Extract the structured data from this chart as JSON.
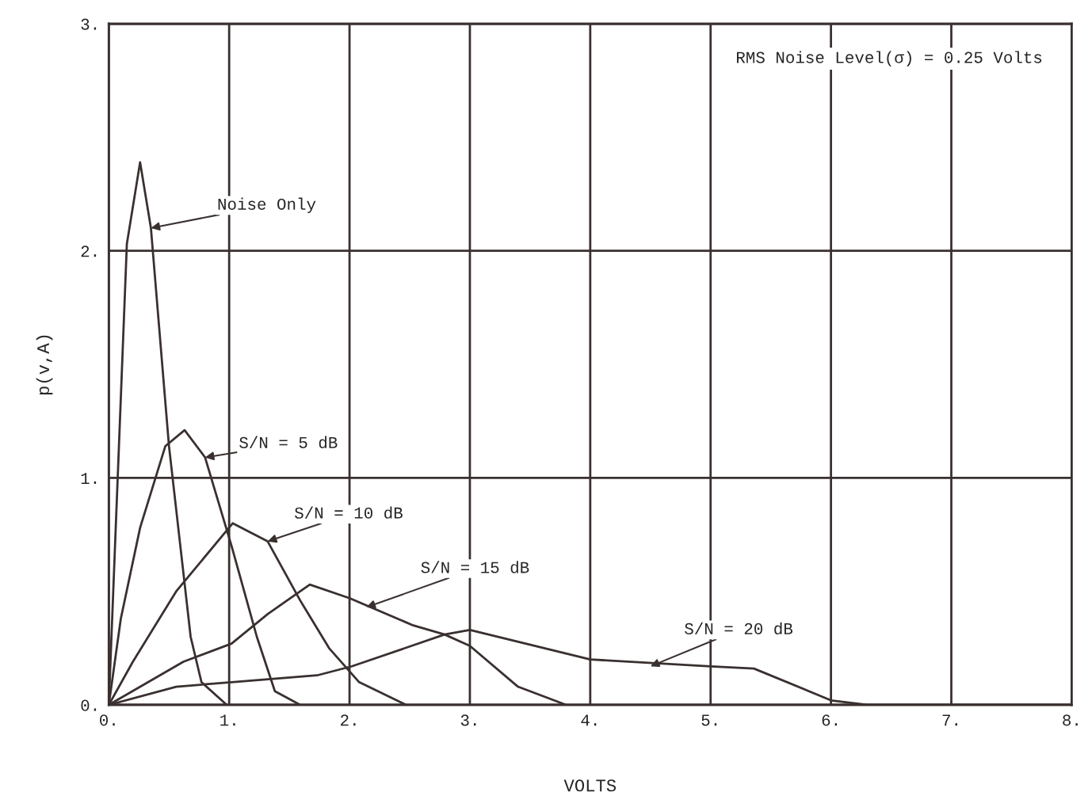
{
  "chart_data": {
    "type": "line",
    "xlabel": "VOLTS",
    "ylabel": "p(v,A)",
    "xlim": [
      0,
      8
    ],
    "ylim": [
      0,
      3
    ],
    "xticks": [
      {
        "value": 0,
        "label": "0."
      },
      {
        "value": 1,
        "label": "1."
      },
      {
        "value": 2,
        "label": "2."
      },
      {
        "value": 3,
        "label": "3."
      },
      {
        "value": 4,
        "label": "4."
      },
      {
        "value": 5,
        "label": "5."
      },
      {
        "value": 6,
        "label": "6."
      },
      {
        "value": 7,
        "label": "7."
      },
      {
        "value": 8,
        "label": "8."
      }
    ],
    "yticks": [
      {
        "value": 0,
        "label": "0."
      },
      {
        "value": 1,
        "label": "1."
      },
      {
        "value": 2,
        "label": "2."
      },
      {
        "value": 3,
        "label": "3."
      }
    ],
    "grid": true,
    "marker": "none",
    "line_style": "solid",
    "series": [
      {
        "color": "#3a3030",
        "x": [
          0,
          0.15,
          0.26,
          0.35,
          0.5,
          0.68,
          0.77,
          0.98
        ],
        "values": [
          0,
          2.03,
          2.39,
          2.1,
          1.14,
          0.3,
          0.1,
          0
        ]
      },
      {
        "color": "#3a3030",
        "x": [
          0,
          0.1,
          0.26,
          0.47,
          0.63,
          0.8,
          1.02,
          1.23,
          1.38,
          1.59
        ],
        "values": [
          0,
          0.38,
          0.78,
          1.14,
          1.21,
          1.09,
          0.7,
          0.3,
          0.06,
          0
        ]
      },
      {
        "color": "#3a3030",
        "x": [
          0,
          0.2,
          0.56,
          1.03,
          1.32,
          1.59,
          1.83,
          2.08,
          2.47
        ],
        "values": [
          0,
          0.19,
          0.5,
          0.8,
          0.72,
          0.46,
          0.25,
          0.1,
          0
        ]
      },
      {
        "color": "#3a3030",
        "x": [
          0,
          0.62,
          1.02,
          1.32,
          1.67,
          2.0,
          2.53,
          2.79,
          3.0,
          3.4,
          3.8
        ],
        "values": [
          0,
          0.19,
          0.27,
          0.4,
          0.53,
          0.47,
          0.35,
          0.31,
          0.26,
          0.08,
          0
        ]
      },
      {
        "color": "#3a3030",
        "x": [
          0,
          0.56,
          1.02,
          1.73,
          2.02,
          2.79,
          3.0,
          4.0,
          5.0,
          5.36,
          6.0,
          6.3,
          8.0
        ],
        "values": [
          0,
          0.08,
          0.1,
          0.13,
          0.17,
          0.31,
          0.33,
          0.2,
          0.17,
          0.16,
          0.02,
          0,
          0
        ]
      }
    ],
    "annotations": [
      {
        "text": "Noise Only",
        "x": 0.35,
        "y": 2.1
      },
      {
        "text": "S/N = 5 dB",
        "x": 0.8,
        "y": 1.09
      },
      {
        "text": "S/N = 10 dB",
        "x": 1.32,
        "y": 0.72
      },
      {
        "text": "S/N = 15 dB",
        "x": 2.14,
        "y": 0.43
      },
      {
        "text": "S/N = 20 dB",
        "x": 4.5,
        "y": 0.17
      },
      "RMS Noise Level(σ) = 0.25 Volts"
    ]
  }
}
